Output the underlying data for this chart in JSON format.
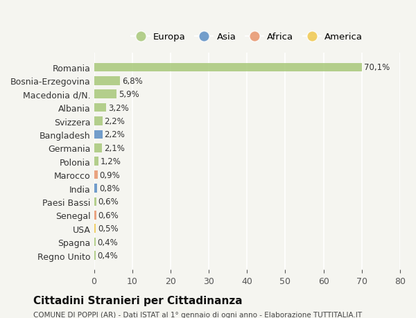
{
  "countries": [
    "Romania",
    "Bosnia-Erzegovina",
    "Macedonia d/N.",
    "Albania",
    "Svizzera",
    "Bangladesh",
    "Germania",
    "Polonia",
    "Marocco",
    "India",
    "Paesi Bassi",
    "Senegal",
    "USA",
    "Spagna",
    "Regno Unito"
  ],
  "values": [
    70.1,
    6.8,
    5.9,
    3.2,
    2.2,
    2.2,
    2.1,
    1.2,
    0.9,
    0.8,
    0.6,
    0.6,
    0.5,
    0.4,
    0.4
  ],
  "labels": [
    "70,1%",
    "6,8%",
    "5,9%",
    "3,2%",
    "2,2%",
    "2,2%",
    "2,1%",
    "1,2%",
    "0,9%",
    "0,8%",
    "0,6%",
    "0,6%",
    "0,5%",
    "0,4%",
    "0,4%"
  ],
  "categories": [
    "Europa",
    "Europa",
    "Europa",
    "Europa",
    "Europa",
    "Asia",
    "Europa",
    "Europa",
    "Africa",
    "Asia",
    "Europa",
    "Africa",
    "America",
    "Europa",
    "Europa"
  ],
  "colors": {
    "Europa": "#a8c87a",
    "Asia": "#5b8ec4",
    "Africa": "#e8956d",
    "America": "#f0c84e"
  },
  "legend_order": [
    "Europa",
    "Asia",
    "Africa",
    "America"
  ],
  "xlim": [
    0,
    80
  ],
  "xticks": [
    0,
    10,
    20,
    30,
    40,
    50,
    60,
    70,
    80
  ],
  "title": "Cittadini Stranieri per Cittadinanza",
  "subtitle": "COMUNE DI POPPI (AR) - Dati ISTAT al 1° gennaio di ogni anno - Elaborazione TUTTITALIA.IT",
  "bg_color": "#f5f5f0",
  "grid_color": "#ffffff",
  "bar_height": 0.65
}
